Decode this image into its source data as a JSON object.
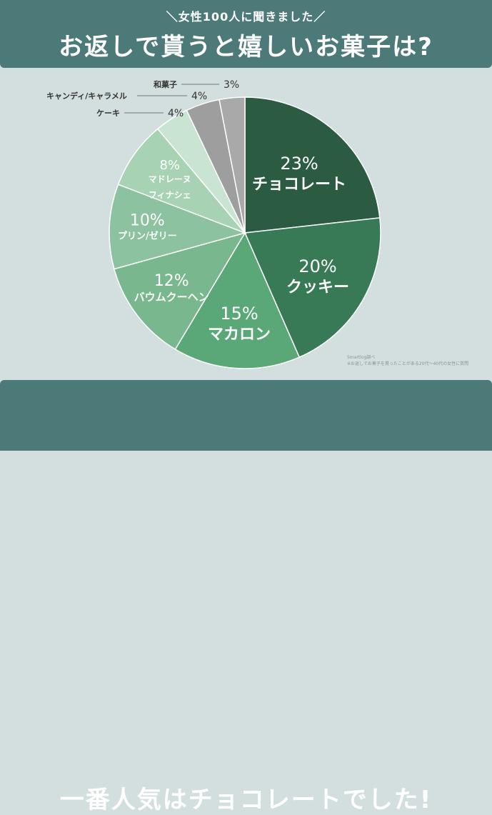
{
  "header": {
    "subtitle": "＼女性100人に聞きました／",
    "title": "お返しで貰うと嬉しいお菓子は?"
  },
  "footer": {
    "conclusion": "一番人気はチョコレートでした!"
  },
  "source": {
    "line1": "Smartlog調べ",
    "line2": "※お返しでお菓子を貰ったことがある20代〜40代の女性に質問"
  },
  "chart_data": {
    "type": "pie",
    "title": "お返しで貰うと嬉しいお菓子は?",
    "unit": "%",
    "slices": [
      {
        "label": "チョコレート",
        "value": 23,
        "value_label": "23%",
        "color": "#2b5c42"
      },
      {
        "label": "クッキー",
        "value": 20,
        "value_label": "20%",
        "color": "#387a56"
      },
      {
        "label": "マカロン",
        "value": 15,
        "value_label": "15%",
        "color": "#5aa878"
      },
      {
        "label": "バウムクーヘン",
        "value": 12,
        "value_label": "12%",
        "color": "#79b78e"
      },
      {
        "label": "プリン/ゼリー",
        "value": 10,
        "value_label": "10%",
        "color": "#8cc29f"
      },
      {
        "label": "マドレーヌ\nフィナシェ",
        "value": 8,
        "value_label": "8%",
        "color": "#a7d2b4"
      },
      {
        "label": "ケーキ",
        "value": 4,
        "value_label": "4%",
        "color": "#c9e4d1"
      },
      {
        "label": "キャンディ/キャラメル",
        "value": 4,
        "value_label": "4%",
        "color": "#9e9e9e"
      },
      {
        "label": "和菓子",
        "value": 3,
        "value_label": "3%",
        "color": "#a9a9a9"
      }
    ]
  }
}
